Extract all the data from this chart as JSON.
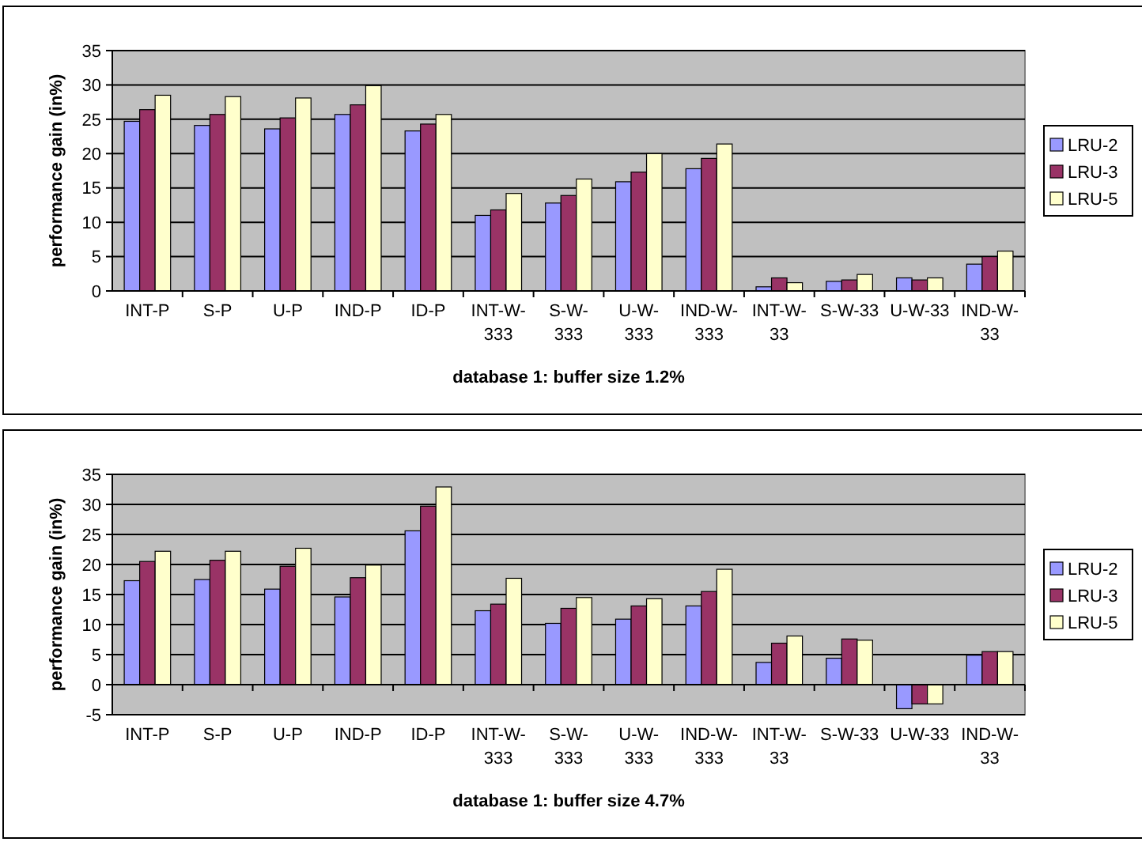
{
  "chart_data": [
    {
      "type": "bar",
      "xlabel": "database 1: buffer size 1.2%",
      "ylabel": "performance gain (in%)",
      "categories": [
        "INT-P",
        "S-P",
        "U-P",
        "IND-P",
        "ID-P",
        "INT-W-333",
        "S-W-333",
        "U-W-333",
        "IND-W-333",
        "INT-W-33",
        "S-W-33",
        "U-W-33",
        "IND-W-33"
      ],
      "series": [
        {
          "name": "LRU-2",
          "color": "#9999ff",
          "values": [
            24.7,
            24.1,
            23.6,
            25.7,
            23.3,
            11.0,
            12.8,
            15.9,
            17.8,
            0.6,
            1.4,
            1.9,
            3.9
          ]
        },
        {
          "name": "LRU-3",
          "color": "#993366",
          "values": [
            26.4,
            25.7,
            25.2,
            27.1,
            24.3,
            11.8,
            13.9,
            17.3,
            19.3,
            1.9,
            1.6,
            1.6,
            5.0
          ]
        },
        {
          "name": "LRU-5",
          "color": "#ffffcc",
          "values": [
            28.5,
            28.3,
            28.1,
            29.9,
            25.7,
            14.2,
            16.3,
            20.0,
            21.4,
            1.2,
            2.4,
            1.9,
            5.8
          ]
        }
      ],
      "ylim": [
        0,
        35
      ],
      "yticks": [
        0,
        5,
        10,
        15,
        20,
        25,
        30,
        35
      ],
      "grid": "y",
      "legend": "right"
    },
    {
      "type": "bar",
      "xlabel": "database 1: buffer size 4.7%",
      "ylabel": "performance gain (in%)",
      "categories": [
        "INT-P",
        "S-P",
        "U-P",
        "IND-P",
        "ID-P",
        "INT-W-333",
        "S-W-333",
        "U-W-333",
        "IND-W-333",
        "INT-W-33",
        "S-W-33",
        "U-W-33",
        "IND-W-33"
      ],
      "series": [
        {
          "name": "LRU-2",
          "color": "#9999ff",
          "values": [
            17.3,
            17.5,
            15.9,
            14.6,
            25.6,
            12.3,
            10.2,
            10.9,
            13.1,
            3.7,
            4.4,
            -4.0,
            4.9
          ]
        },
        {
          "name": "LRU-3",
          "color": "#993366",
          "values": [
            20.5,
            20.7,
            19.7,
            17.8,
            29.7,
            13.4,
            12.7,
            13.1,
            15.5,
            6.9,
            7.6,
            -3.2,
            5.5
          ]
        },
        {
          "name": "LRU-5",
          "color": "#ffffcc",
          "values": [
            22.2,
            22.2,
            22.7,
            19.9,
            32.9,
            17.7,
            14.5,
            14.3,
            19.2,
            8.1,
            7.4,
            -3.2,
            5.5
          ]
        }
      ],
      "ylim": [
        -5,
        35
      ],
      "yticks": [
        -5,
        0,
        5,
        10,
        15,
        20,
        25,
        30,
        35
      ],
      "grid": "y",
      "legend": "right"
    }
  ]
}
